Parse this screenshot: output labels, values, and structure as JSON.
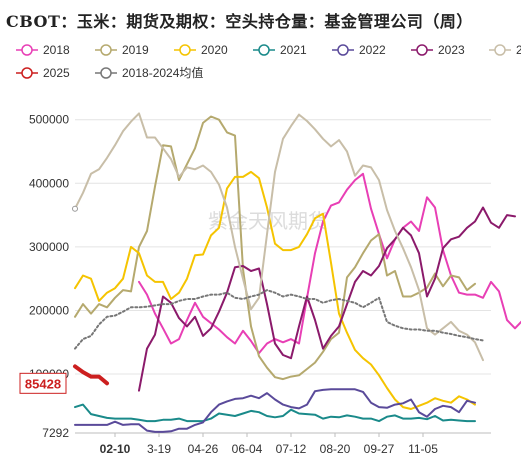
{
  "chart_data": {
    "type": "line",
    "title": "CBOT：玉米：期货及期权：空头持仓量：基金管理公司（周）",
    "xlabel": "",
    "ylabel": "",
    "ylim": [
      7292,
      520000
    ],
    "yticks": [
      "500000",
      "400000",
      "300000",
      "200000",
      "100000",
      "7292"
    ],
    "ytick_values": [
      500000,
      400000,
      300000,
      200000,
      100000,
      7292
    ],
    "xticks": [
      "02-10",
      "3-19",
      "04-26",
      "06-04",
      "07-12",
      "08-20",
      "09-27",
      "11-05"
    ],
    "xtick_weeks": [
      5,
      10.5,
      16,
      21.5,
      27,
      32.5,
      38,
      43.5
    ],
    "xtick_highlight": "02-10",
    "highlight_value": "85428",
    "watermark": "紫金天风期货",
    "grid": true,
    "legend_position": "top",
    "series": [
      {
        "name": "2018",
        "color": "#e83fb5",
        "start_week": 8,
        "values": [
          245000,
          225000,
          195000,
          172000,
          148000,
          155000,
          185000,
          212000,
          190000,
          180000,
          170000,
          158000,
          148000,
          168000,
          152000,
          133000,
          148000,
          155000,
          150000,
          155000,
          148000,
          220000,
          290000,
          340000,
          365000,
          370000,
          390000,
          405000,
          415000,
          360000,
          320000,
          282000,
          312000,
          330000,
          340000,
          325000,
          378000,
          362000,
          295000,
          255000,
          228000,
          225000,
          225000,
          220000,
          245000,
          230000,
          185000,
          172000,
          185000,
          200000
        ]
      },
      {
        "name": "2019",
        "color": "#b5a96e",
        "start_week": 0,
        "values": [
          190000,
          210000,
          195000,
          210000,
          205000,
          220000,
          232000,
          230000,
          300000,
          325000,
          395000,
          460000,
          458000,
          405000,
          430000,
          455000,
          495000,
          505000,
          500000,
          480000,
          475000,
          265000,
          175000,
          128000,
          110000,
          95000,
          92000,
          96000,
          98000,
          108000,
          118000,
          135000,
          155000,
          165000,
          252000,
          268000,
          290000,
          310000,
          320000,
          255000,
          262000,
          222000,
          222000,
          228000,
          236000,
          258000,
          238000,
          255000,
          252000,
          232000,
          242000
        ]
      },
      {
        "name": "2020",
        "color": "#f5c400",
        "start_week": 0,
        "values": [
          235000,
          255000,
          250000,
          215000,
          228000,
          235000,
          250000,
          300000,
          290000,
          255000,
          245000,
          245000,
          218000,
          228000,
          250000,
          287000,
          288000,
          318000,
          330000,
          392000,
          410000,
          410000,
          418000,
          408000,
          362000,
          305000,
          295000,
          295000,
          300000,
          320000,
          345000,
          352000,
          275000,
          195000,
          165000,
          138000,
          125000,
          115000,
          98000,
          78000,
          60000,
          48000,
          45000,
          50000,
          55000,
          62000,
          58000,
          55000,
          65000,
          60000,
          52000
        ]
      },
      {
        "name": "2021",
        "color": "#1a8a8a",
        "start_week": 0,
        "values": [
          48000,
          52000,
          37000,
          34000,
          31000,
          30000,
          30000,
          30000,
          28000,
          26000,
          26000,
          28000,
          28000,
          30000,
          26000,
          26000,
          26000,
          30000,
          38000,
          36000,
          34000,
          38000,
          42000,
          40000,
          34000,
          32000,
          34000,
          44000,
          38000,
          37000,
          36000,
          30000,
          33000,
          32000,
          35000,
          33000,
          30000,
          30000,
          26000,
          33000,
          35000,
          30000,
          30000,
          31000,
          29000,
          34000,
          27000,
          28000,
          27000,
          26000,
          26000
        ]
      },
      {
        "name": "2022",
        "color": "#5a4a9a",
        "start_week": 0,
        "values": [
          20000,
          20000,
          20000,
          20000,
          20000,
          25000,
          20000,
          21000,
          21000,
          11000,
          9000,
          9000,
          10000,
          14000,
          14000,
          20000,
          24000,
          40000,
          52000,
          57000,
          61000,
          62000,
          66000,
          62000,
          70000,
          60000,
          52000,
          48000,
          46000,
          52000,
          73000,
          75000,
          76000,
          76000,
          76000,
          76000,
          72000,
          55000,
          48000,
          47000,
          52000,
          54000,
          60000,
          40000,
          33000,
          45000,
          50000,
          48000,
          40000,
          58000,
          55000
        ]
      },
      {
        "name": "2023",
        "color": "#8b1a6b",
        "start_week": 8,
        "values": [
          74000,
          140000,
          162000,
          222000,
          212000,
          188000,
          175000,
          190000,
          160000,
          172000,
          198000,
          228000,
          268000,
          270000,
          262000,
          266000,
          210000,
          148000,
          130000,
          125000,
          175000,
          222000,
          185000,
          140000,
          160000,
          175000,
          210000,
          245000,
          262000,
          255000,
          270000,
          298000,
          312000,
          330000,
          318000,
          290000,
          222000,
          250000,
          298000,
          312000,
          316000,
          330000,
          340000,
          362000,
          338000,
          330000,
          350000,
          348000
        ]
      },
      {
        "name": "2024",
        "color": "#c8bea8",
        "start_week": 0,
        "values": [
          360000,
          385000,
          415000,
          422000,
          440000,
          460000,
          482000,
          497000,
          510000,
          472000,
          472000,
          455000,
          438000,
          410000,
          425000,
          422000,
          428000,
          418000,
          398000,
          362000,
          300000,
          250000,
          202000,
          220000,
          320000,
          418000,
          470000,
          490000,
          508000,
          498000,
          485000,
          470000,
          458000,
          468000,
          450000,
          412000,
          428000,
          425000,
          405000,
          358000,
          325000,
          298000,
          268000,
          232000,
          172000,
          162000,
          172000,
          182000,
          168000,
          162000,
          150000,
          122000
        ]
      },
      {
        "name": "2025",
        "color": "#cc1f1f",
        "start_week": 0,
        "values": [
          112000,
          103000,
          96000,
          96000,
          85428
        ]
      },
      {
        "name": "2018-2024均值",
        "color": "#777777",
        "start_week": 0,
        "dotted": true,
        "values": [
          140000,
          155000,
          160000,
          178000,
          190000,
          192000,
          198000,
          205000,
          205000,
          206000,
          208000,
          210000,
          210000,
          215000,
          218000,
          218000,
          222000,
          225000,
          225000,
          228000,
          220000,
          218000,
          222000,
          225000,
          232000,
          228000,
          222000,
          225000,
          222000,
          218000,
          218000,
          212000,
          216000,
          218000,
          215000,
          212000,
          205000,
          212000,
          220000,
          182000,
          176000,
          172000,
          170000,
          170000,
          168000,
          168000,
          165000,
          163000,
          160000,
          158000,
          155000,
          153000
        ]
      }
    ]
  }
}
